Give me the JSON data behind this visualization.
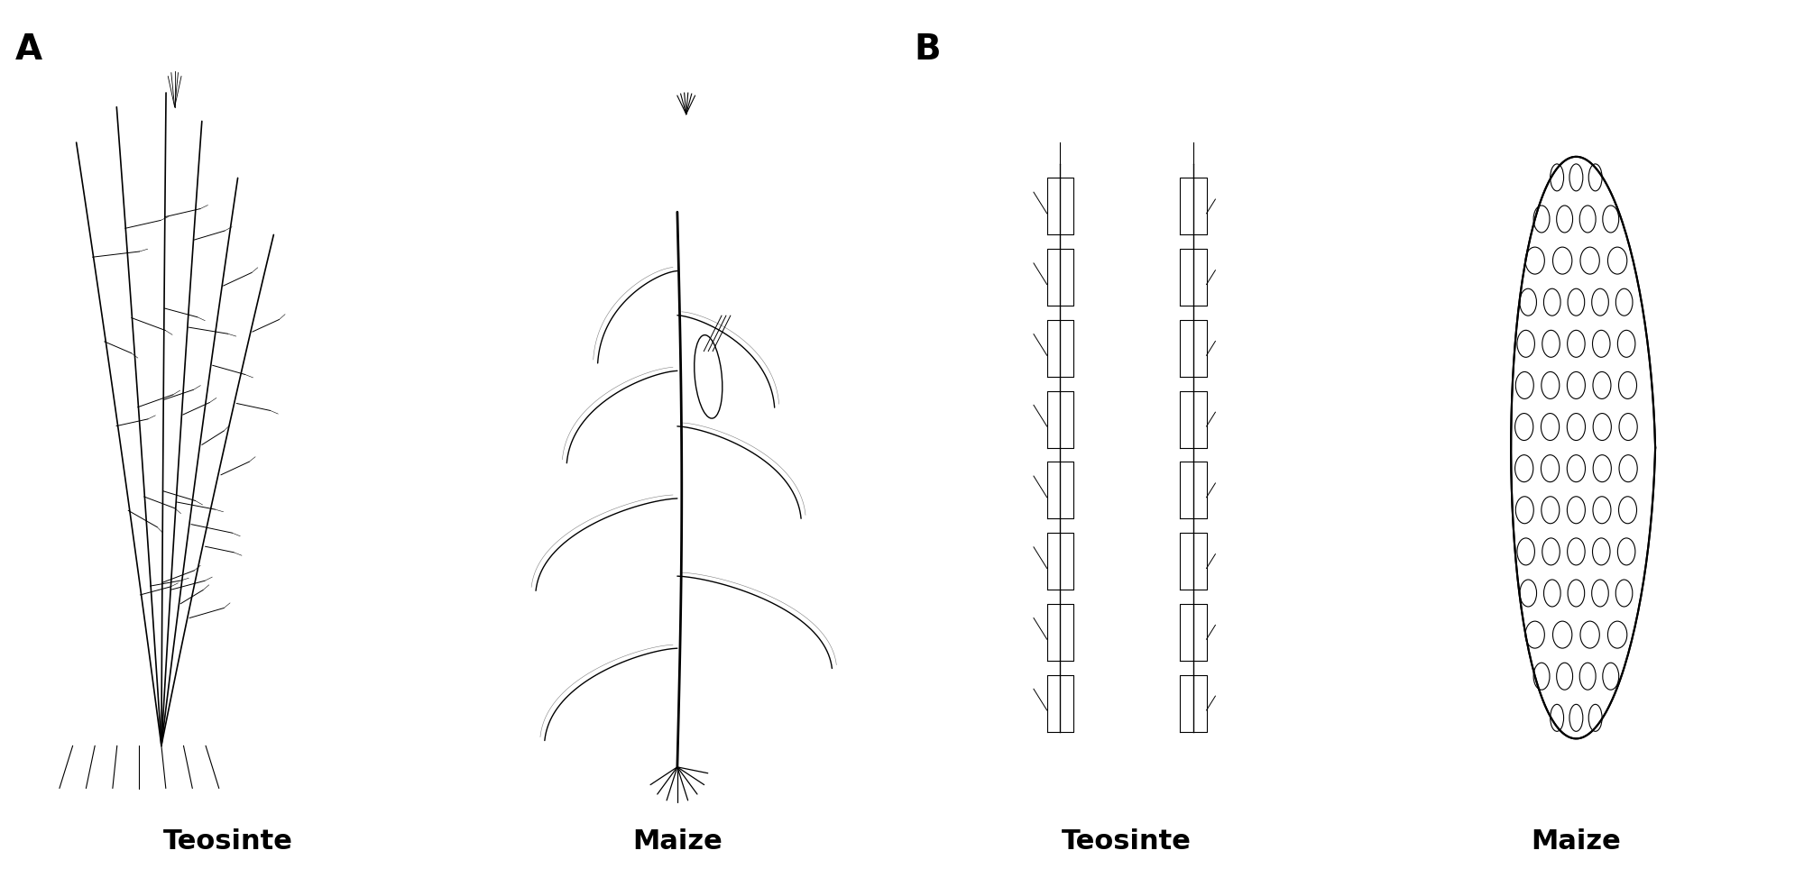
{
  "background_color": "#ffffff",
  "panel_A_label": "A",
  "panel_B_label": "B",
  "label_A_teosinte": "Teosinte",
  "label_A_maize": "Maize",
  "label_B_teosinte": "Teosinte",
  "label_B_maize": "Maize",
  "label_fontsize": 22,
  "panel_label_fontsize": 28,
  "figsize": [
    20.0,
    9.74
  ],
  "dpi": 100
}
